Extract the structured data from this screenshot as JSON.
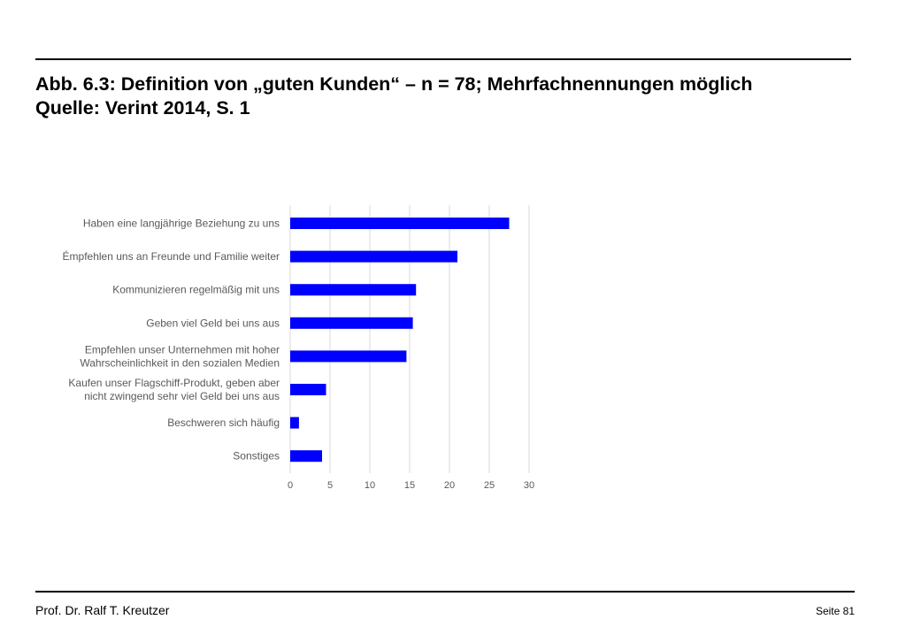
{
  "slide": {
    "title_line1": "Abb. 6.3: Definition von „guten Kunden“ – n = 78; Mehrfachnennungen möglich",
    "title_line2": "Quelle: Verint 2014, S. 1",
    "footer_author": "Prof. Dr. Ralf T. Kreutzer",
    "footer_page": "Seite 81"
  },
  "chart_data": {
    "type": "bar",
    "orientation": "horizontal",
    "categories": [
      [
        "Haben eine langjährige Beziehung zu uns"
      ],
      [
        "Émpfehlen uns an Freunde und Familie weiter"
      ],
      [
        "Kommunizieren regelmäßig mit uns"
      ],
      [
        "Geben viel Geld bei uns aus"
      ],
      [
        "Empfehlen unser Unternehmen mit hoher",
        "Wahrscheinlichkeit in den sozialen Medien"
      ],
      [
        "Kaufen unser Flagschiff-Produkt, geben aber",
        "nicht zwingend sehr viel Geld bei uns aus"
      ],
      [
        "Beschweren sich häufig"
      ],
      [
        "Sonstiges"
      ]
    ],
    "values": [
      27.5,
      21,
      15.8,
      15.4,
      14.6,
      4.5,
      1.1,
      4
    ],
    "xlim": [
      0,
      30
    ],
    "xticks": [
      "0",
      "5",
      "10",
      "15",
      "20",
      "25",
      "30"
    ],
    "grid": true,
    "bar_color": "#0000ff",
    "title": "",
    "xlabel": "",
    "ylabel": ""
  }
}
